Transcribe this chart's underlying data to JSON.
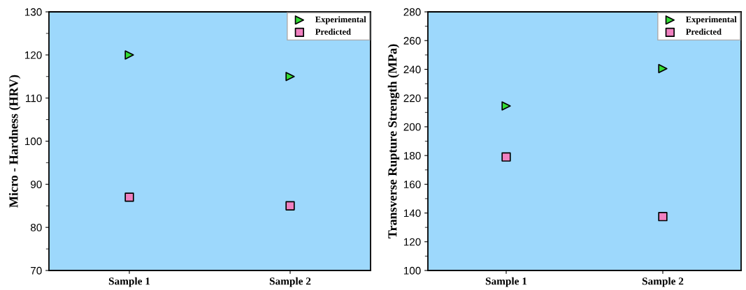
{
  "chart_data": [
    {
      "type": "scatter",
      "ylabel": "Micro - Hardness (HRV)",
      "categories": [
        "Sample 1",
        "Sample 2"
      ],
      "ylim": [
        70,
        130
      ],
      "yticks": [
        70,
        80,
        90,
        100,
        110,
        120,
        130
      ],
      "grid": false,
      "legend": "top right",
      "series": [
        {
          "name": "Experimental",
          "color": "#33dd33",
          "marker": "triangle",
          "values": [
            120,
            115
          ]
        },
        {
          "name": "Predicted",
          "color": "#f080c0",
          "marker": "square",
          "values": [
            87,
            85
          ]
        }
      ]
    },
    {
      "type": "scatter",
      "ylabel": "Transverse Rupture Strength (MPa)",
      "categories": [
        "Sample 1",
        "Sample 2"
      ],
      "ylim": [
        100,
        280
      ],
      "yticks": [
        100,
        120,
        140,
        160,
        180,
        200,
        220,
        240,
        260,
        280
      ],
      "grid": false,
      "legend": "top right",
      "series": [
        {
          "name": "Experimental",
          "color": "#33dd33",
          "marker": "triangle",
          "values": [
            214.5,
            240.5
          ]
        },
        {
          "name": "Predicted",
          "color": "#f080c0",
          "marker": "square",
          "values": [
            179,
            137.5
          ]
        }
      ]
    }
  ]
}
